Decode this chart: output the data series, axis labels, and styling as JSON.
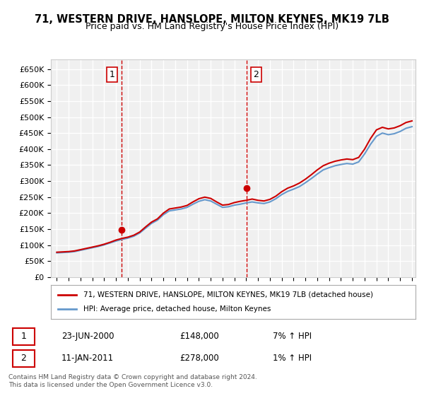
{
  "title": "71, WESTERN DRIVE, HANSLOPE, MILTON KEYNES, MK19 7LB",
  "subtitle": "Price paid vs. HM Land Registry's House Price Index (HPI)",
  "ylabel": "",
  "xlabel": "",
  "ylim": [
    0,
    680000
  ],
  "yticks": [
    0,
    50000,
    100000,
    150000,
    200000,
    250000,
    300000,
    350000,
    400000,
    450000,
    500000,
    550000,
    600000,
    650000
  ],
  "ytick_labels": [
    "£0",
    "£50K",
    "£100K",
    "£150K",
    "£200K",
    "£250K",
    "£300K",
    "£350K",
    "£400K",
    "£450K",
    "£500K",
    "£550K",
    "£600K",
    "£650K"
  ],
  "background_color": "#ffffff",
  "plot_bg_color": "#f0f0f0",
  "grid_color": "#ffffff",
  "sale1_x": 2000.48,
  "sale1_y": 148000,
  "sale1_label": "1",
  "sale1_date": "23-JUN-2000",
  "sale1_price": "£148,000",
  "sale1_hpi": "7% ↑ HPI",
  "sale2_x": 2011.03,
  "sale2_y": 278000,
  "sale2_label": "2",
  "sale2_date": "11-JAN-2011",
  "sale2_price": "£278,000",
  "sale2_hpi": "1% ↑ HPI",
  "vline1_x": 2000.48,
  "vline2_x": 2011.03,
  "vline_color": "#cc0000",
  "vline_style": "--",
  "legend_label_red": "71, WESTERN DRIVE, HANSLOPE, MILTON KEYNES, MK19 7LB (detached house)",
  "legend_label_blue": "HPI: Average price, detached house, Milton Keynes",
  "footnote": "Contains HM Land Registry data © Crown copyright and database right 2024.\nThis data is licensed under the Open Government Licence v3.0.",
  "hpi_color": "#6699cc",
  "price_color": "#cc0000",
  "marker_color": "#cc0000",
  "hpi_data_x": [
    1995,
    1995.5,
    1996,
    1996.5,
    1997,
    1997.5,
    1998,
    1998.5,
    1999,
    1999.5,
    2000,
    2000.5,
    2001,
    2001.5,
    2002,
    2002.5,
    2003,
    2003.5,
    2004,
    2004.5,
    2005,
    2005.5,
    2006,
    2006.5,
    2007,
    2007.5,
    2008,
    2008.5,
    2009,
    2009.5,
    2010,
    2010.5,
    2011,
    2011.5,
    2012,
    2012.5,
    2013,
    2013.5,
    2014,
    2014.5,
    2015,
    2015.5,
    2016,
    2016.5,
    2017,
    2017.5,
    2018,
    2018.5,
    2019,
    2019.5,
    2020,
    2020.5,
    2021,
    2021.5,
    2022,
    2022.5,
    2023,
    2023.5,
    2024,
    2024.5,
    2025
  ],
  "hpi_data_y": [
    76000,
    77000,
    78000,
    80000,
    84000,
    88000,
    92000,
    96000,
    101000,
    107000,
    113000,
    118000,
    122000,
    128000,
    138000,
    153000,
    168000,
    178000,
    195000,
    207000,
    210000,
    213000,
    218000,
    228000,
    237000,
    242000,
    238000,
    228000,
    218000,
    220000,
    225000,
    228000,
    232000,
    235000,
    232000,
    230000,
    235000,
    245000,
    258000,
    268000,
    275000,
    283000,
    295000,
    308000,
    322000,
    335000,
    342000,
    348000,
    352000,
    355000,
    353000,
    360000,
    385000,
    415000,
    440000,
    450000,
    445000,
    448000,
    455000,
    465000,
    470000
  ],
  "price_data_x": [
    1995,
    1995.5,
    1996,
    1996.5,
    1997,
    1997.5,
    1998,
    1998.5,
    1999,
    1999.5,
    2000,
    2000.5,
    2001,
    2001.5,
    2002,
    2002.5,
    2003,
    2003.5,
    2004,
    2004.5,
    2005,
    2005.5,
    2006,
    2006.5,
    2007,
    2007.5,
    2008,
    2008.5,
    2009,
    2009.5,
    2010,
    2010.5,
    2011,
    2011.5,
    2012,
    2012.5,
    2013,
    2013.5,
    2014,
    2014.5,
    2015,
    2015.5,
    2016,
    2016.5,
    2017,
    2017.5,
    2018,
    2018.5,
    2019,
    2019.5,
    2020,
    2020.5,
    2021,
    2021.5,
    2022,
    2022.5,
    2023,
    2023.5,
    2024,
    2024.5,
    2025
  ],
  "price_data_y": [
    78000,
    79000,
    80000,
    82000,
    86000,
    90000,
    94000,
    98000,
    103000,
    109000,
    116000,
    121000,
    125000,
    131000,
    141000,
    157000,
    172000,
    182000,
    200000,
    213000,
    216000,
    219000,
    224000,
    235000,
    245000,
    250000,
    246000,
    235000,
    225000,
    227000,
    233000,
    237000,
    240000,
    244000,
    240000,
    238000,
    243000,
    253000,
    267000,
    278000,
    285000,
    294000,
    306000,
    320000,
    335000,
    348000,
    356000,
    362000,
    366000,
    369000,
    367000,
    374000,
    400000,
    433000,
    460000,
    468000,
    463000,
    466000,
    473000,
    483000,
    488000
  ],
  "xlim_left": 1994.5,
  "xlim_right": 2025.3,
  "xticks": [
    1995,
    1996,
    1997,
    1998,
    1999,
    2000,
    2001,
    2002,
    2003,
    2004,
    2005,
    2006,
    2007,
    2008,
    2009,
    2010,
    2011,
    2012,
    2013,
    2014,
    2015,
    2016,
    2017,
    2018,
    2019,
    2020,
    2021,
    2022,
    2023,
    2024,
    2025
  ]
}
